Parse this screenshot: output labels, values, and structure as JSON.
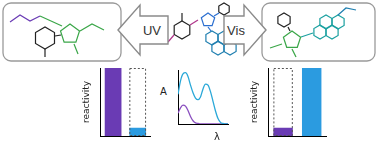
{
  "arrows": [
    {
      "label": "UV",
      "direction": "left"
    },
    {
      "label": "Vis",
      "direction": "right"
    }
  ],
  "chart_data": [
    {
      "type": "bar",
      "y_label": "reactivity",
      "categories": [
        null,
        null
      ],
      "values": [
        1.0,
        0.12
      ],
      "colors": [
        "#6a3bb4",
        "#2b9be0"
      ],
      "ylim": [
        0,
        1
      ],
      "tick_labels": false
    },
    {
      "type": "line",
      "x_label": "λ",
      "y_label": "A",
      "x": [
        0,
        5,
        10,
        15,
        20,
        25,
        30,
        35,
        40,
        45,
        50,
        55,
        60,
        65,
        70,
        75,
        80,
        85,
        90,
        95,
        100
      ],
      "series": [
        {
          "color": "#2aa8d8",
          "values": [
            0.55,
            0.8,
            0.93,
            0.95,
            0.88,
            0.72,
            0.58,
            0.48,
            0.45,
            0.5,
            0.65,
            0.74,
            0.72,
            0.6,
            0.42,
            0.24,
            0.1,
            0.03,
            0.01,
            0,
            0
          ]
        },
        {
          "color": "#8a4fbf",
          "values": [
            0.2,
            0.3,
            0.35,
            0.33,
            0.25,
            0.14,
            0.06,
            0.02,
            0.01,
            0,
            0,
            0,
            0,
            0,
            0,
            0,
            0,
            0,
            0,
            0,
            0
          ]
        }
      ],
      "xlim": [
        0,
        100
      ],
      "ylim": [
        0,
        1
      ],
      "tick_labels": false
    },
    {
      "type": "bar",
      "y_label": "reactivity",
      "categories": [
        null,
        null
      ],
      "values": [
        0.12,
        1.0
      ],
      "colors": [
        "#6a3bb4",
        "#2b9be0"
      ],
      "ylim": [
        0,
        1
      ],
      "tick_labels": false
    }
  ]
}
